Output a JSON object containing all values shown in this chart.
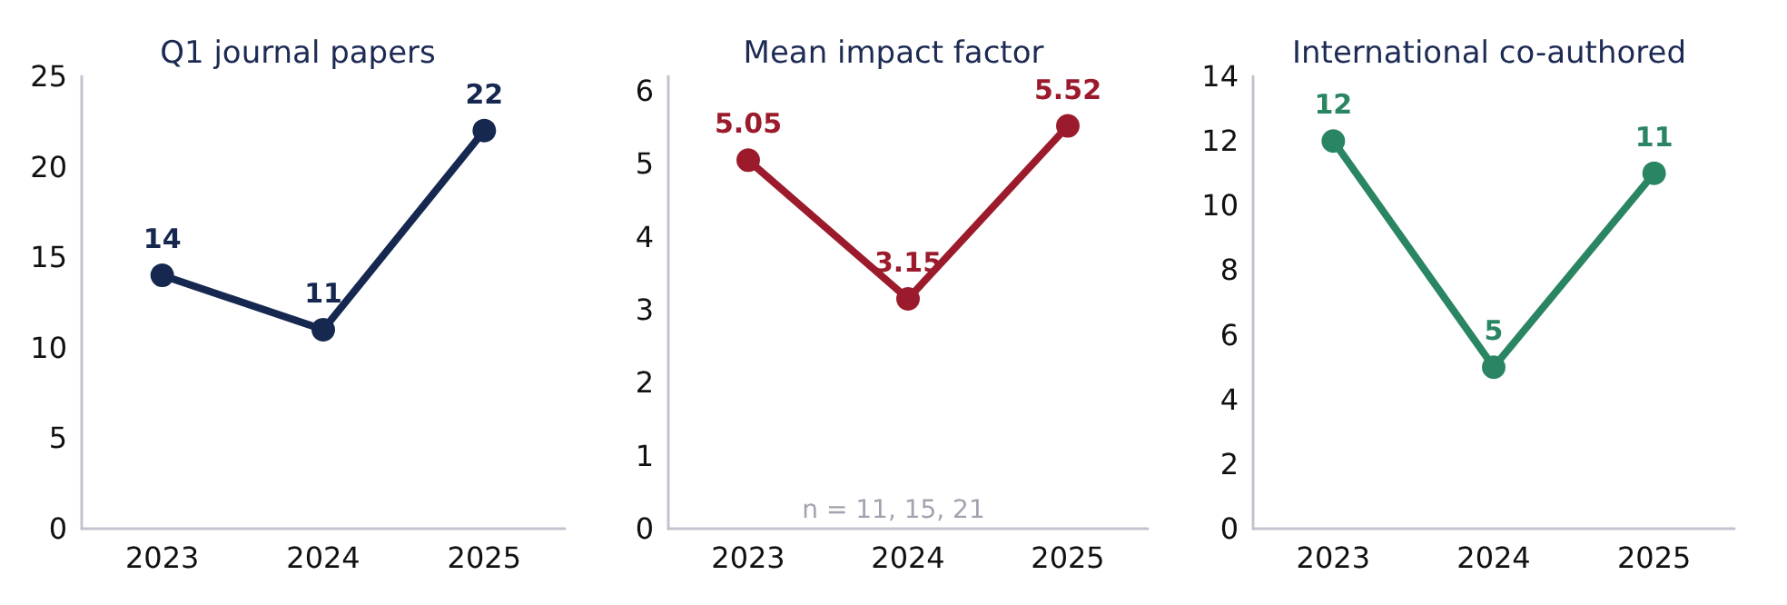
{
  "chart_data": [
    {
      "type": "line",
      "title": "Q1 journal papers",
      "categories": [
        "2023",
        "2024",
        "2025"
      ],
      "series": [
        {
          "color": "#162850",
          "values": [
            14,
            11,
            22
          ]
        }
      ],
      "ylim": [
        0,
        25
      ],
      "yticks": [
        0,
        5,
        10,
        15,
        20,
        25
      ],
      "grid": false,
      "marker": "circle",
      "data_labels": true
    },
    {
      "type": "line",
      "title": "Mean impact factor",
      "categories": [
        "2023",
        "2024",
        "2025"
      ],
      "series": [
        {
          "color": "#9b1b2c",
          "values": [
            5.05,
            3.15,
            5.52
          ]
        }
      ],
      "ylim": [
        0,
        6.2
      ],
      "yticks": [
        0,
        1,
        2,
        3,
        4,
        5,
        6
      ],
      "grid": false,
      "marker": "circle",
      "data_labels": true,
      "annotations": [
        "n = 11, 15, 21"
      ]
    },
    {
      "type": "line",
      "title": "International co-authored",
      "categories": [
        "2023",
        "2024",
        "2025"
      ],
      "series": [
        {
          "color": "#2a8563",
          "values": [
            12,
            5,
            11
          ]
        }
      ],
      "ylim": [
        0,
        14
      ],
      "yticks": [
        0,
        2,
        4,
        6,
        8,
        10,
        12,
        14
      ],
      "grid": false,
      "marker": "circle",
      "data_labels": true
    }
  ]
}
